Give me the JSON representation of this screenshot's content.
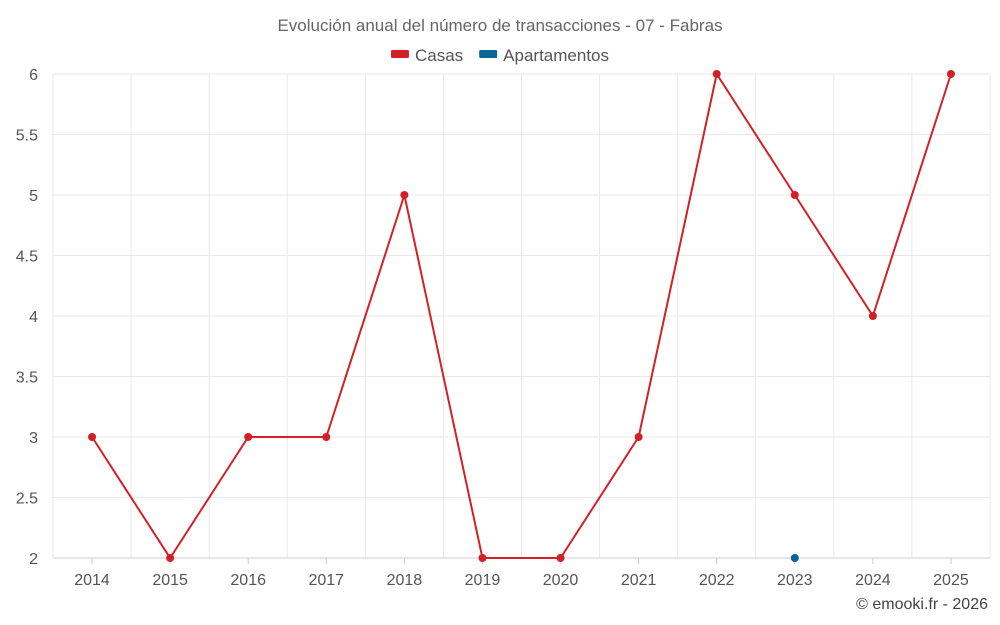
{
  "chart_data": {
    "type": "line",
    "title": "Evolución anual del número de transacciones - 07 - Fabras",
    "categories": [
      "2014",
      "2015",
      "2016",
      "2017",
      "2018",
      "2019",
      "2020",
      "2021",
      "2022",
      "2023",
      "2024",
      "2025"
    ],
    "series": [
      {
        "name": "Casas",
        "color": "#d32027",
        "values": [
          3,
          2,
          3,
          3,
          5,
          2,
          2,
          3,
          6,
          5,
          4,
          6
        ]
      },
      {
        "name": "Apartamentos",
        "color": "#0a6496",
        "values": [
          null,
          null,
          null,
          null,
          null,
          null,
          null,
          null,
          null,
          2,
          null,
          null
        ]
      }
    ],
    "ylim": [
      2,
      6
    ],
    "yticks": [
      2,
      2.5,
      3,
      3.5,
      4,
      4.5,
      5,
      5.5,
      6
    ],
    "ytick_labels": [
      "2",
      "2.5",
      "3",
      "3.5",
      "4",
      "4.5",
      "5",
      "5.5",
      "6"
    ],
    "grid": true,
    "legend_position": "top-center"
  },
  "credit": "© emooki.fr - 2026"
}
